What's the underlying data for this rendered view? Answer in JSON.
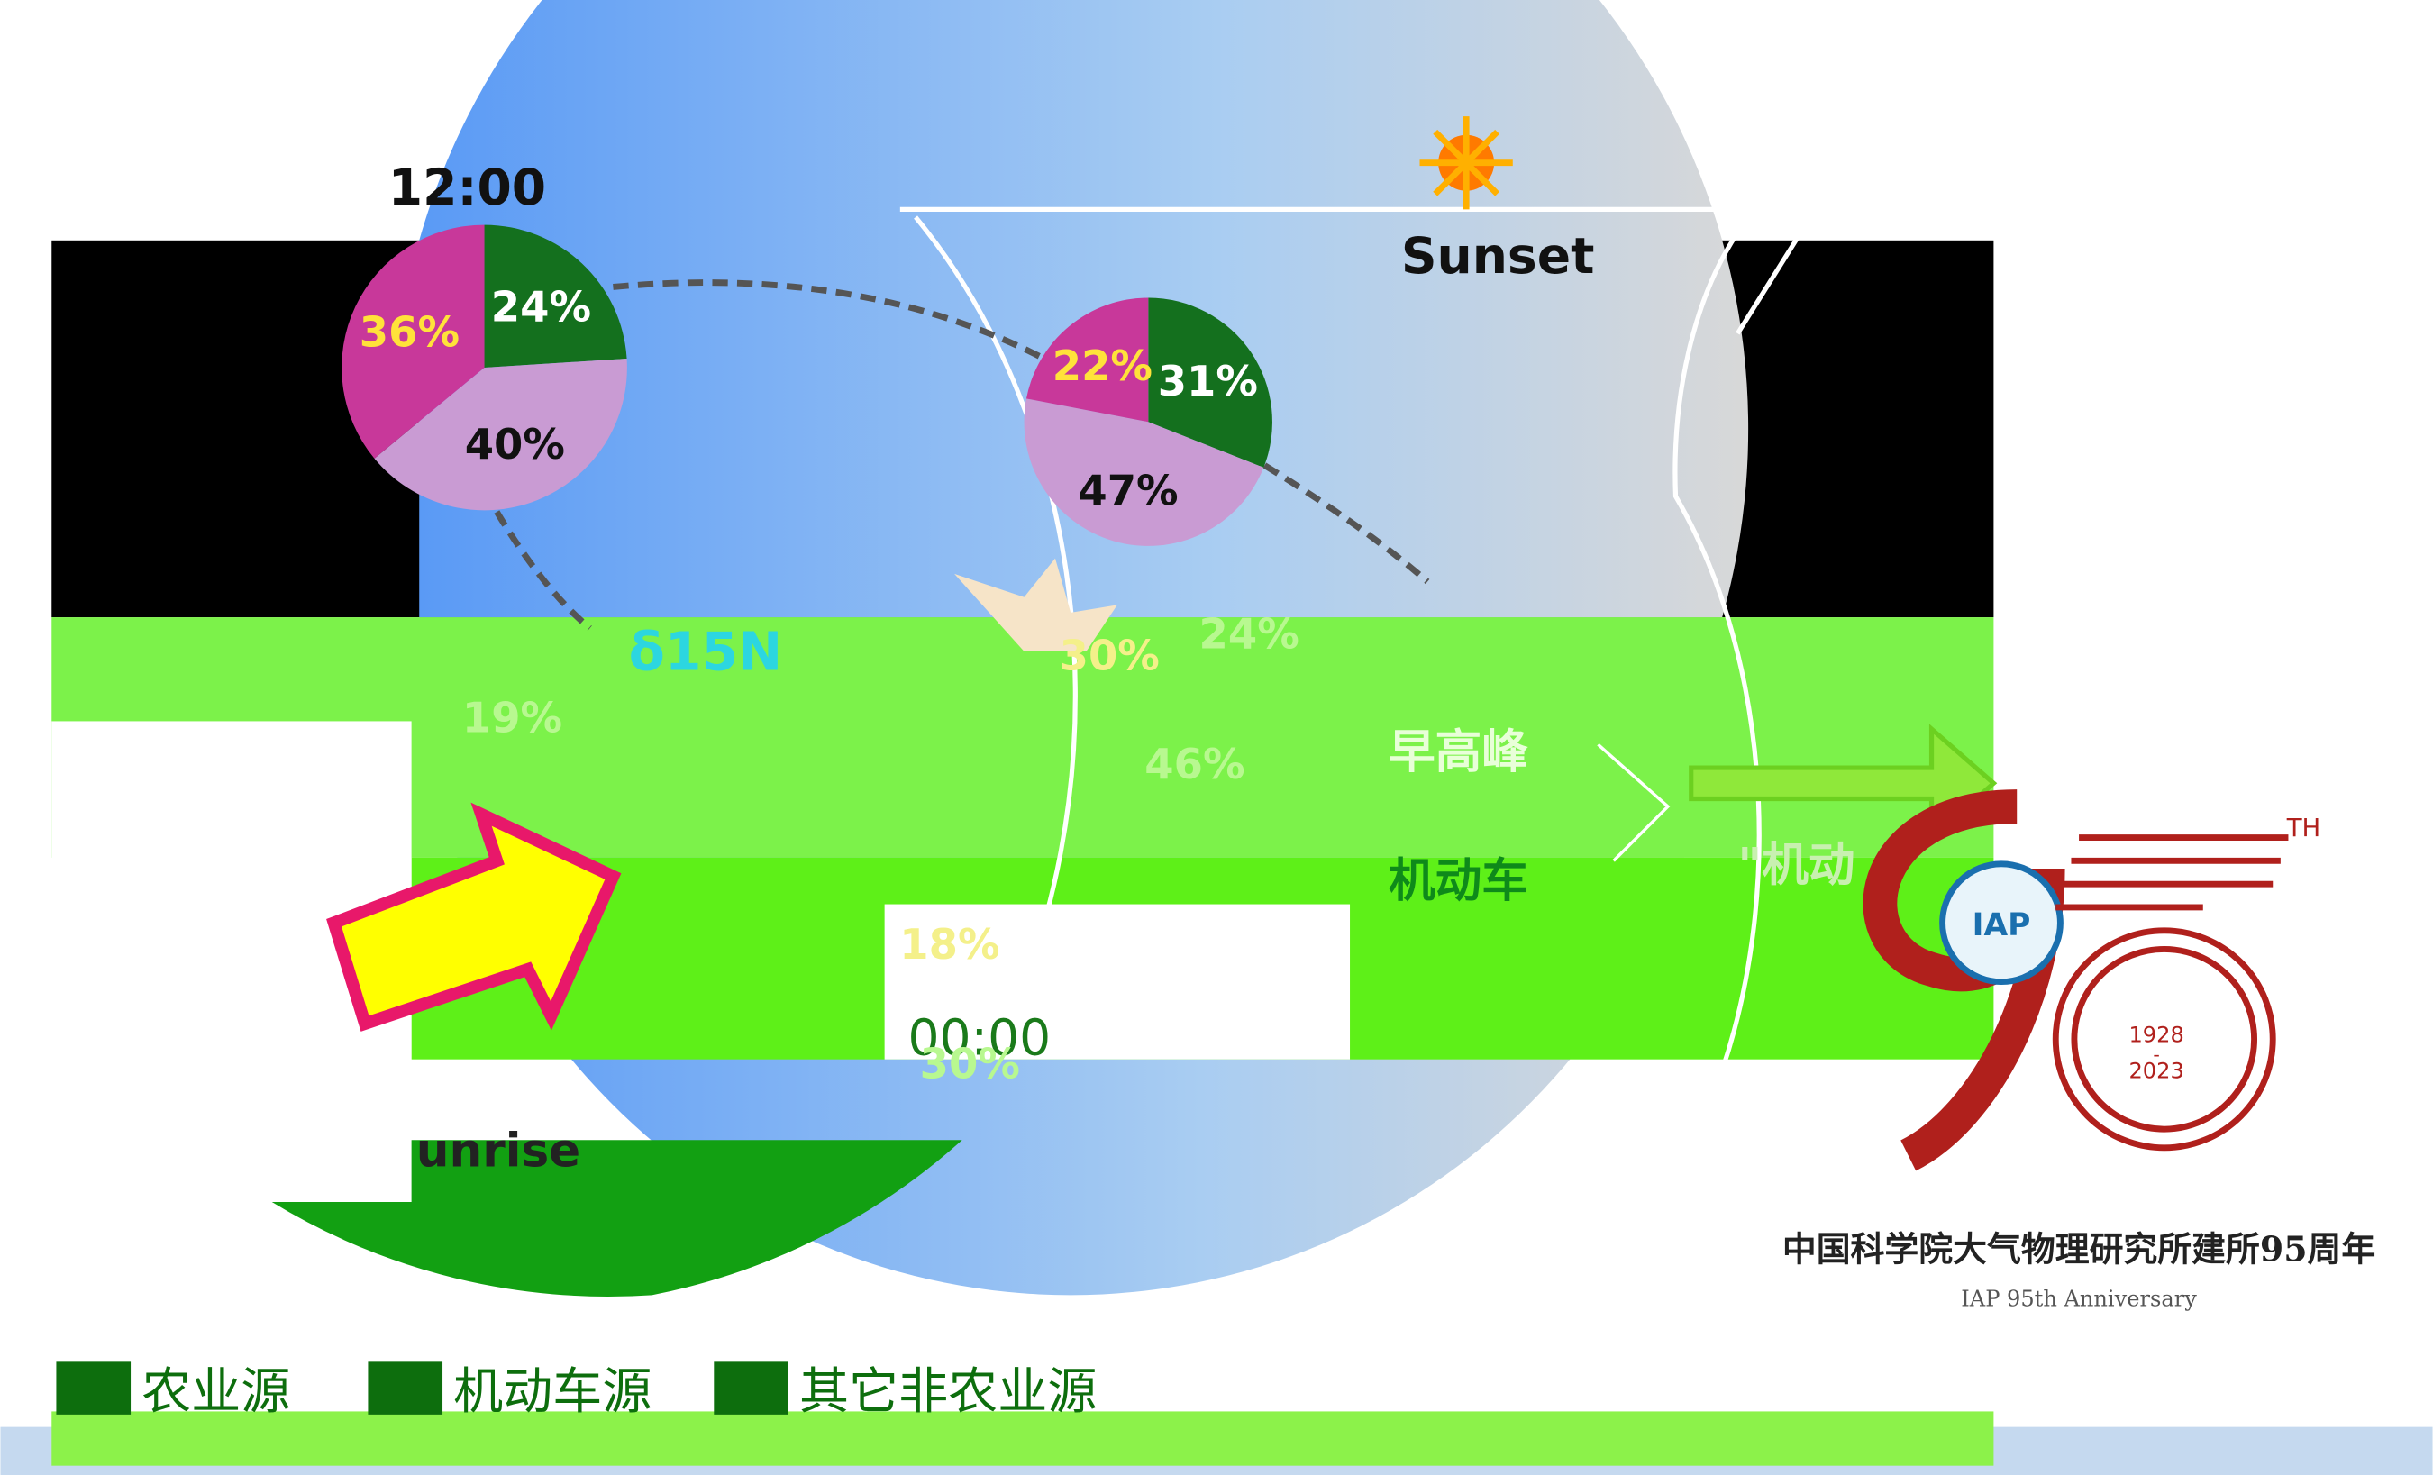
{
  "scene": {
    "time_noon": "12:00",
    "sunset": "Sunset",
    "sunrise": "unrise",
    "time_midnight": "00:00",
    "isotope": "δ15N",
    "morning_peak": "早高峰",
    "vehicle": "机动车",
    "vehicle_quote": "\"机动",
    "pies": [
      {
        "values": [
          24,
          40,
          36
        ],
        "value_labels": [
          "24%",
          "40%",
          "36%"
        ],
        "colors": [
          "#14701e",
          "#c99bd3",
          "#c8389a"
        ],
        "label_colors": [
          "#ffffff",
          "#111111",
          "#ffe23a"
        ]
      },
      {
        "values": [
          31,
          47,
          22
        ],
        "value_labels": [
          "31%",
          "47%",
          "22%"
        ],
        "colors": [
          "#14701e",
          "#c99bd3",
          "#c8389a"
        ],
        "label_colors": [
          "#ffffff",
          "#111111",
          "#ffe23a"
        ]
      }
    ],
    "faded_labels": [
      "19%",
      "30%",
      "24%",
      "46%",
      "18%",
      "30%"
    ]
  },
  "legend": [
    "农业源",
    "机动车源",
    "其它非农业源"
  ],
  "logo": {
    "th": "TH",
    "start": "1928",
    "dash": "-",
    "end": "2023",
    "title": "中国科学院大气物理研究所建所95周年",
    "subtitle": "IAP 95th Anniversary"
  }
}
